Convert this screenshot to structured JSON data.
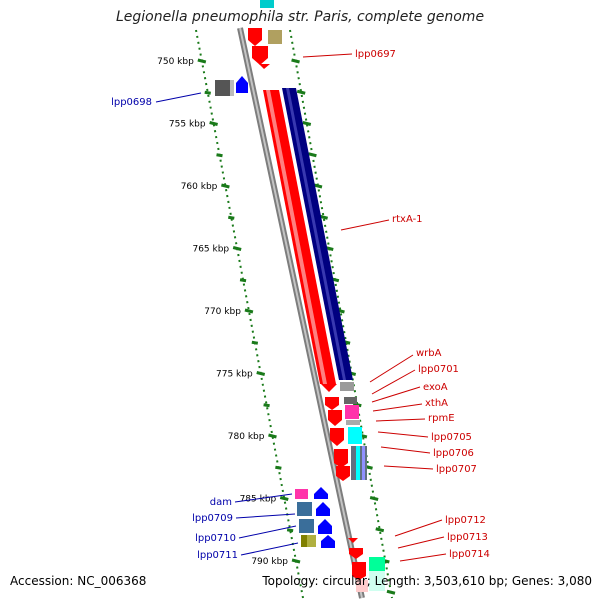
{
  "title": "Legionella pneumophila str. Paris, complete genome",
  "accession": "Accession: NC_006368",
  "topology": "Topology: circular; Length: 3,503,610 bp; Genes: 3,080",
  "colors": {
    "backbone": "#9a9a9a",
    "tick": "#1a7a1a",
    "red_label": "#cc0000",
    "blue_label": "#0000aa",
    "forward_gene": "#ff0000",
    "reverse_gene": "#0000ff",
    "long_reverse_gene": "#000080"
  },
  "ticks": [
    "750 kbp",
    "755 kbp",
    "760 kbp",
    "765 kbp",
    "770 kbp",
    "775 kbp",
    "780 kbp",
    "785 kbp",
    "790 kbp"
  ],
  "genes_right": [
    {
      "label": "lpp0697",
      "color": "#cc0000"
    },
    {
      "label": "rtxA-1",
      "color": "#cc0000"
    },
    {
      "label": "wrbA",
      "color": "#cc0000"
    },
    {
      "label": "lpp0701",
      "color": "#cc0000"
    },
    {
      "label": "exoA",
      "color": "#cc0000"
    },
    {
      "label": "xthA",
      "color": "#cc0000"
    },
    {
      "label": "rpmE",
      "color": "#cc0000"
    },
    {
      "label": "lpp0705",
      "color": "#cc0000"
    },
    {
      "label": "lpp0706",
      "color": "#cc0000"
    },
    {
      "label": "lpp0707",
      "color": "#cc0000"
    },
    {
      "label": "lpp0712",
      "color": "#cc0000"
    },
    {
      "label": "lpp0713",
      "color": "#cc0000"
    },
    {
      "label": "lpp0714",
      "color": "#cc0000"
    }
  ],
  "genes_left": [
    {
      "label": "lpp0698",
      "color": "#0000aa"
    },
    {
      "label": "dam",
      "color": "#0000aa"
    },
    {
      "label": "lpp0709",
      "color": "#0000aa"
    },
    {
      "label": "lpp0710",
      "color": "#0000aa"
    },
    {
      "label": "lpp0711",
      "color": "#0000aa"
    }
  ]
}
